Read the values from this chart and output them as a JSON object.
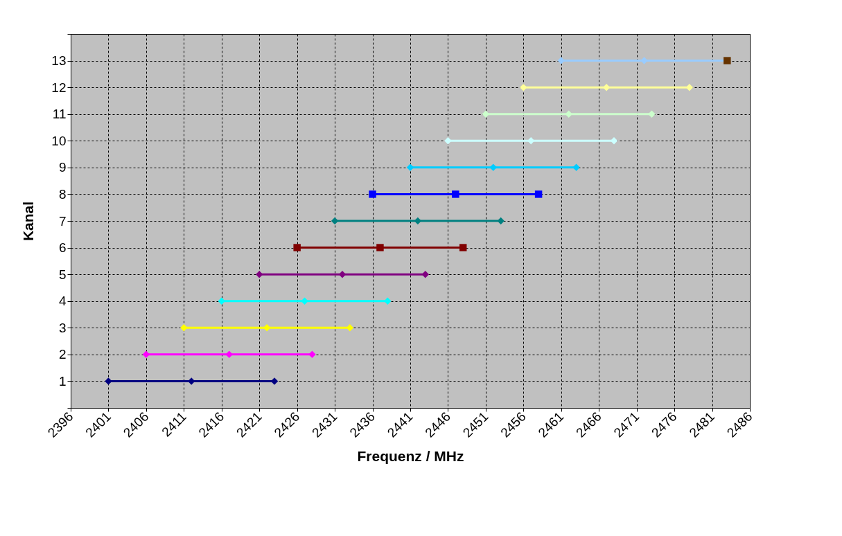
{
  "chart_data": {
    "type": "line",
    "xlabel": "Frequenz / MHz",
    "ylabel": "Kanal",
    "xlim": [
      2396,
      2486
    ],
    "xticks": [
      2396,
      2401,
      2406,
      2411,
      2416,
      2421,
      2426,
      2431,
      2436,
      2441,
      2446,
      2451,
      2456,
      2461,
      2466,
      2471,
      2476,
      2481,
      2486
    ],
    "ylim": [
      0,
      14
    ],
    "yticks": [
      {
        "value": 0,
        "label": null
      },
      1,
      2,
      3,
      4,
      5,
      6,
      7,
      8,
      9,
      10,
      11,
      12,
      13,
      {
        "value": 14,
        "label": null
      }
    ],
    "grid": true,
    "marker": "diamond",
    "line_style": "solid",
    "series": [
      {
        "color": "#000080",
        "x": [
          2401,
          2412,
          2423
        ],
        "values": [
          1,
          1,
          1
        ]
      },
      {
        "color": "#ff00ff",
        "x": [
          2406,
          2417,
          2428
        ],
        "values": [
          2,
          2,
          2
        ]
      },
      {
        "color": "#ffff00",
        "x": [
          2411,
          2422,
          2433
        ],
        "values": [
          3,
          3,
          3
        ]
      },
      {
        "color": "#00ffff",
        "x": [
          2416,
          2427,
          2438
        ],
        "values": [
          4,
          4,
          4
        ]
      },
      {
        "color": "#800080",
        "x": [
          2421,
          2432,
          2443
        ],
        "values": [
          5,
          5,
          5
        ]
      },
      {
        "color": "#800000",
        "marker": "square",
        "x": [
          2426,
          2437,
          2448
        ],
        "values": [
          6,
          6,
          6
        ]
      },
      {
        "color": "#008080",
        "x": [
          2431,
          2442,
          2453
        ],
        "values": [
          7,
          7,
          7
        ]
      },
      {
        "color": "#0000ff",
        "marker": "square",
        "x": [
          2436,
          2447,
          2458
        ],
        "values": [
          8,
          8,
          8
        ]
      },
      {
        "color": "#00ccff",
        "x": [
          2441,
          2452,
          2463
        ],
        "values": [
          9,
          9,
          9
        ]
      },
      {
        "color": "#ccffff",
        "x": [
          2446,
          2457,
          2468
        ],
        "values": [
          10,
          10,
          10
        ]
      },
      {
        "color": "#ccffcc",
        "x": [
          2451,
          2462,
          2473
        ],
        "values": [
          11,
          11,
          11
        ]
      },
      {
        "color": "#ffff99",
        "x": [
          2456,
          2467,
          2478
        ],
        "values": [
          12,
          12,
          12
        ]
      },
      {
        "color": "#99ccff",
        "x": [
          2461,
          2472,
          2483
        ],
        "values": [
          13,
          13,
          13
        ]
      },
      {
        "type": "scatter",
        "color": "#663300",
        "marker": "square",
        "x": [
          2483
        ],
        "values": [
          13
        ]
      }
    ]
  }
}
